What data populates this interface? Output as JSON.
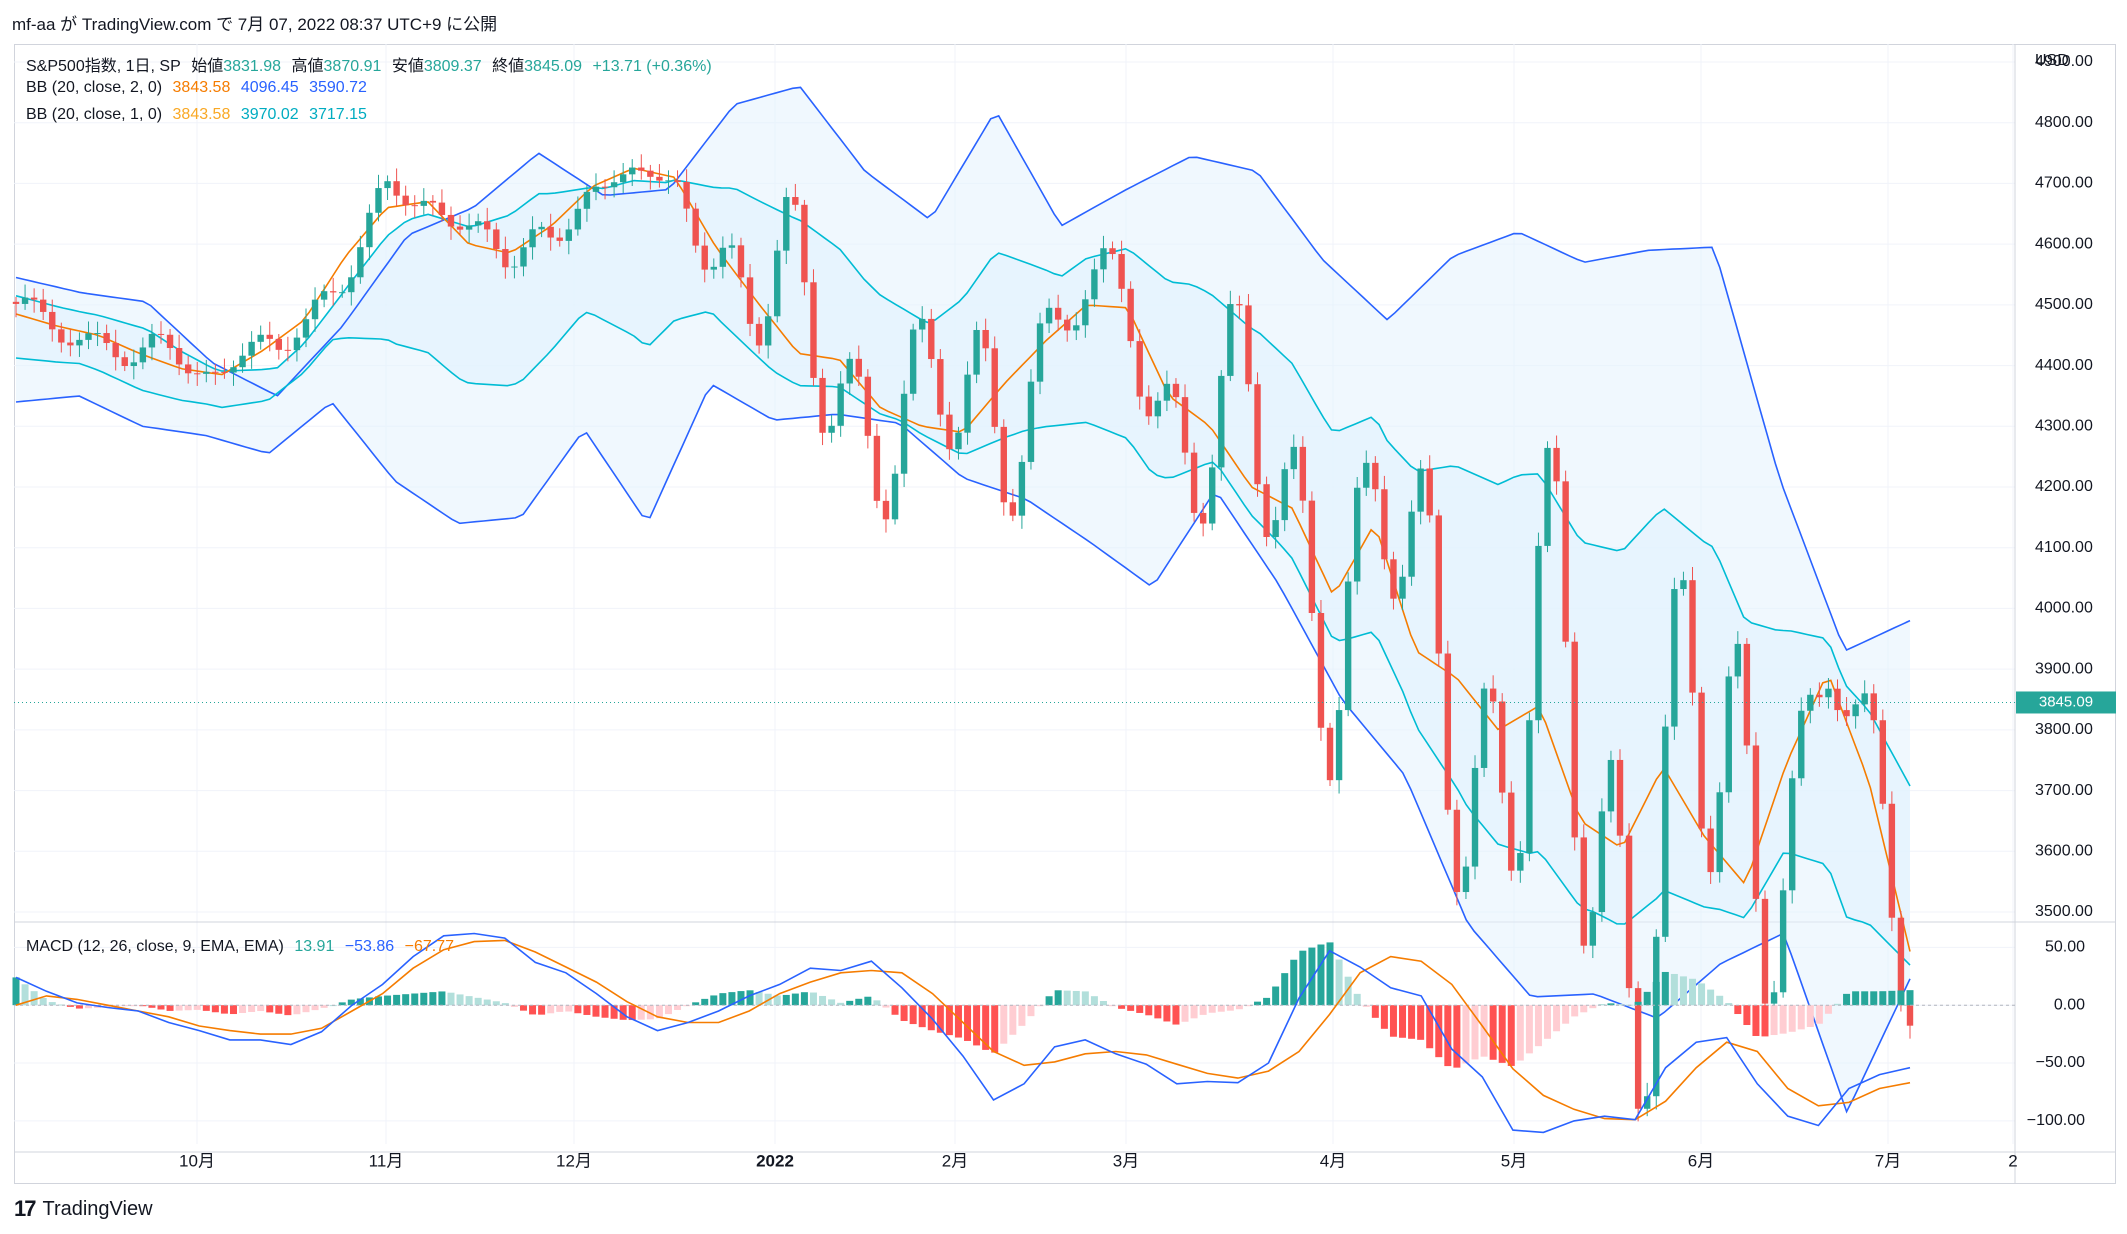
{
  "header": {
    "publish_line": "mf-aa が TradingView.com で 7月 07, 2022 08:37 UTC+9 に公開"
  },
  "footer": {
    "brand": "TradingView",
    "logo_icon": "tradingview-logo-icon"
  },
  "colors": {
    "up": "#26a69a",
    "down": "#ef5350",
    "bb2": "#2962ff",
    "bb1": "#00bcd4",
    "basis": "#f57c00",
    "band_fill": "#e3f2fd",
    "macd": "#2962ff",
    "signal": "#f57c00",
    "hist_up_strong": "#26a69a",
    "hist_up_weak": "#b2dfdb",
    "hist_dn_strong": "#ff5252",
    "hist_dn_weak": "#ffcdd2",
    "price_line": "#26a69a"
  },
  "legend": {
    "main": {
      "symbol": "S&P500指数, 1日, SP",
      "open_label": "始値",
      "open": "3831.98",
      "high_label": "高値",
      "high": "3870.91",
      "low_label": "安値",
      "low": "3809.37",
      "close_label": "終値",
      "close": "3845.09",
      "change": "+13.71 (+0.36%)"
    },
    "bb2": {
      "label": "BB (20, close, 2, 0)",
      "basis": "3843.58",
      "upper": "4096.45",
      "lower": "3590.72"
    },
    "bb1": {
      "label": "BB (20, close, 1, 0)",
      "basis": "3843.58",
      "upper": "3970.02",
      "lower": "3717.15"
    },
    "macd": {
      "label": "MACD (12, 26, close, 9, EMA, EMA)",
      "hist": "13.91",
      "macd": "−53.86",
      "signal": "−67.77"
    }
  },
  "chart_data": {
    "type": "candlestick",
    "currency_label": "USD",
    "price_axis": {
      "ylim": [
        3500,
        4900
      ],
      "ticks": [
        "3500.00",
        "3600.00",
        "3700.00",
        "3800.00",
        "3900.00",
        "4000.00",
        "4100.00",
        "4200.00",
        "4300.00",
        "4400.00",
        "4500.00",
        "4600.00",
        "4700.00",
        "4800.00",
        "4900.00"
      ]
    },
    "macd_axis": {
      "ylim": [
        -120,
        65
      ],
      "ticks": [
        "50.00",
        "0.00",
        "−50.00",
        "−100.00"
      ]
    },
    "x_axis": {
      "labels": [
        "10月",
        "11月",
        "12月",
        "2022",
        "2月",
        "3月",
        "4月",
        "5月",
        "6月",
        "7月",
        "2"
      ]
    },
    "last_price": 3845.09,
    "bb2_upper_anchors": [
      4545,
      4520,
      4505,
      4405,
      4350,
      4465,
      4615,
      4660,
      4750,
      4680,
      4690,
      4830,
      4860,
      4720,
      4640,
      4820,
      4630,
      4690,
      4745,
      4720,
      4575,
      4475,
      4580,
      4620,
      4570,
      4590,
      4595,
      4215,
      3930,
      3980
    ],
    "bb2_lower_anchors": [
      4340,
      4350,
      4300,
      4285,
      4255,
      4340,
      4210,
      4140,
      4150,
      4295,
      4140,
      4370,
      4310,
      4320,
      4305,
      4215,
      4180,
      4110,
      4035,
      4195,
      4040,
      3850,
      3725,
      3480,
      3360,
      3365,
      3325,
      3415,
      3465,
      3170,
      3390
    ],
    "basis_anchors": [
      4485,
      4465,
      4450,
      4420,
      4395,
      4385,
      4425,
      4475,
      4580,
      4660,
      4670,
      4600,
      4585,
      4630,
      4695,
      4725,
      4710,
      4595,
      4505,
      4420,
      4410,
      4330,
      4300,
      4290,
      4370,
      4440,
      4500,
      4495,
      4350,
      4300,
      4200,
      4165,
      4020,
      4140,
      3930,
      3885,
      3800,
      3840,
      3650,
      3605,
      3740,
      3625,
      3545,
      3745,
      3895,
      3715,
      3435
    ],
    "macd_line": [
      24,
      12,
      2,
      -2,
      -5,
      -15,
      -22,
      -30,
      -30,
      -34,
      -23,
      0,
      18,
      42,
      60,
      62,
      58,
      37,
      28,
      10,
      -10,
      -22,
      -15,
      -5,
      8,
      18,
      32,
      30,
      38,
      15,
      -12,
      -44,
      -82,
      -68,
      -36,
      -30,
      -42,
      -51,
      -68,
      -66,
      -67,
      -50,
      6,
      47,
      33,
      15,
      8,
      -38,
      -62,
      -108,
      -110,
      -100,
      -96,
      -99,
      -54,
      -32,
      -28,
      -68,
      -96,
      -104,
      -72,
      -60,
      -54
    ],
    "signal_line": [
      0,
      8,
      5,
      0,
      -5,
      -10,
      -18,
      -22,
      -25,
      -25,
      -20,
      -5,
      10,
      32,
      48,
      55,
      56,
      46,
      33,
      20,
      3,
      -10,
      -15,
      -15,
      -5,
      10,
      20,
      28,
      30,
      28,
      10,
      -15,
      -40,
      -52,
      -49,
      -42,
      -40,
      -43,
      -51,
      -59,
      -63,
      -57,
      -40,
      -8,
      28,
      42,
      38,
      18,
      -18,
      -55,
      -78,
      -90,
      -98,
      -99,
      -83,
      -54,
      -32,
      -40,
      -72,
      -87,
      -84,
      -72,
      -67
    ]
  }
}
